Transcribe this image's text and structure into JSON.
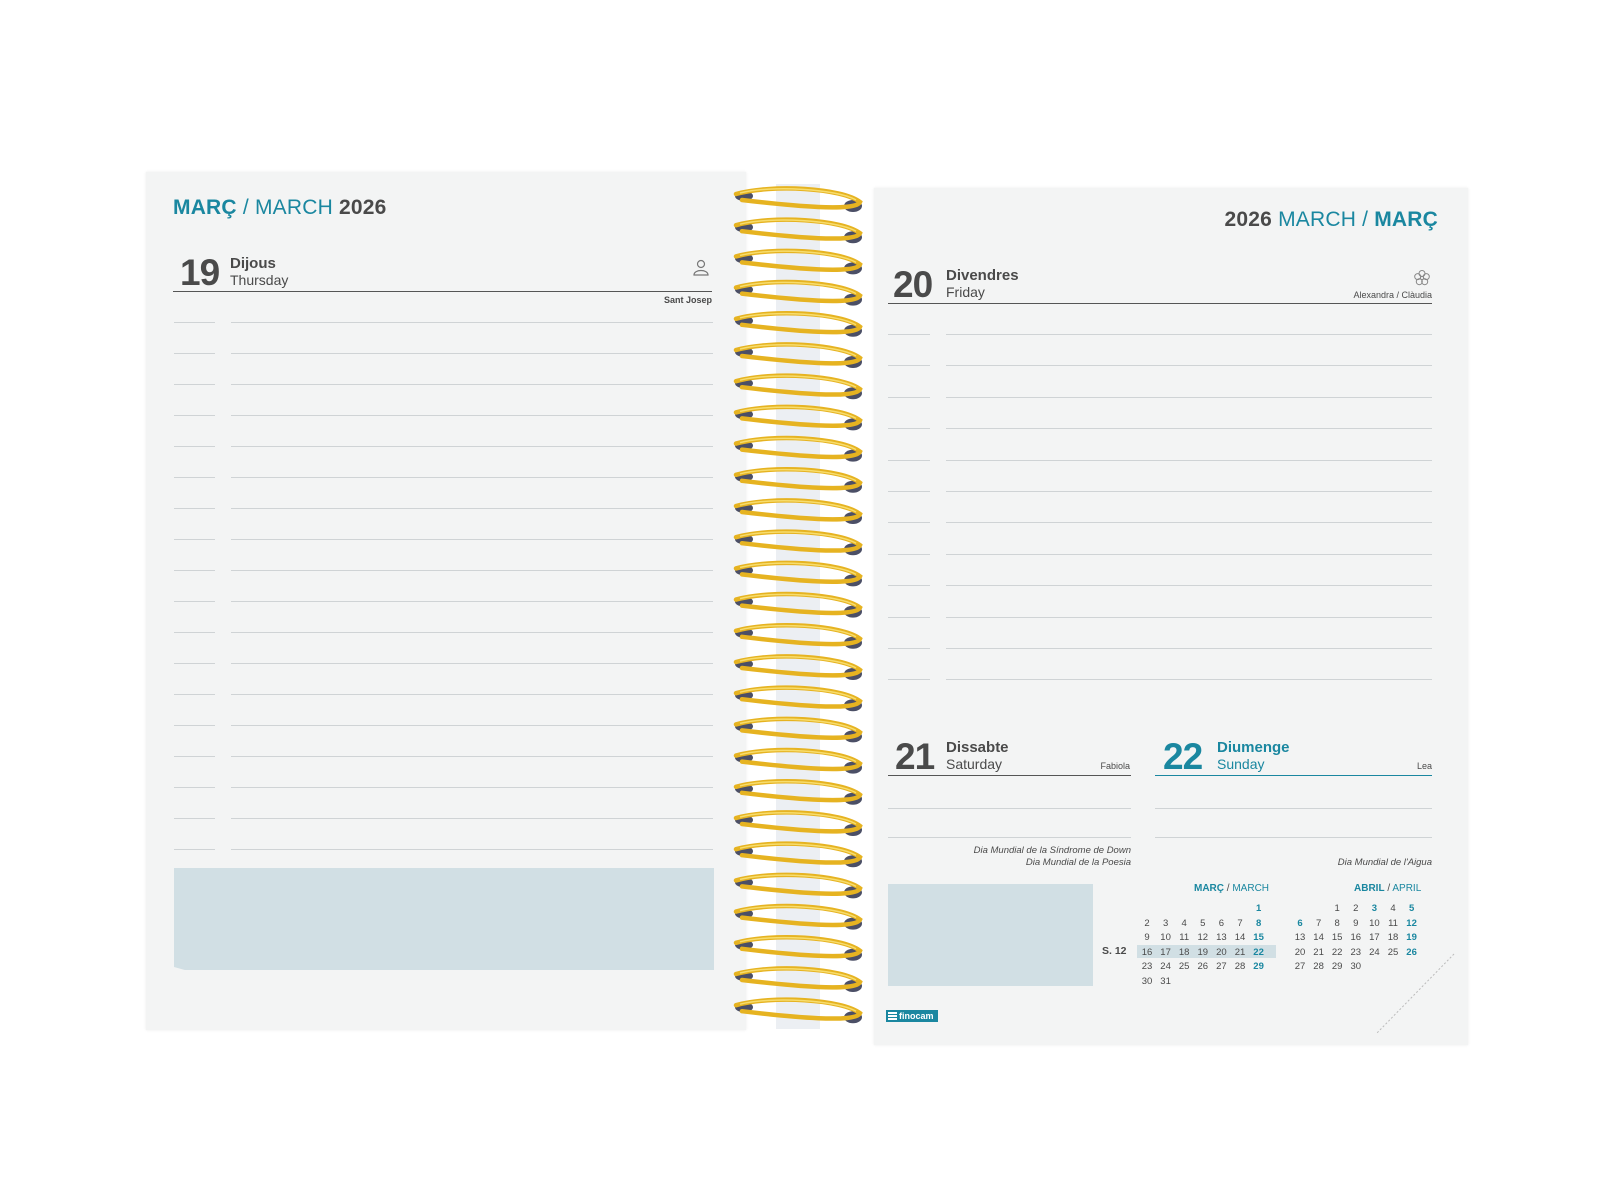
{
  "left_page": {
    "header": {
      "ca": "MARÇ",
      "sep": "/",
      "en": "MARCH",
      "year": "2026"
    },
    "day": {
      "number": "19",
      "name_ca": "Dijous",
      "name_en": "Thursday",
      "saint": "Sant Josep",
      "icon": "person-icon"
    },
    "line_count": 18
  },
  "right_page": {
    "header": {
      "year": "2026",
      "en": "MARCH",
      "sep": "/",
      "ca": "MARÇ"
    },
    "day20": {
      "number": "20",
      "name_ca": "Divendres",
      "name_en": "Friday",
      "saint": "Alexandra / Clàudia",
      "icon": "flower-icon"
    },
    "day21": {
      "number": "21",
      "name_ca": "Dissabte",
      "name_en": "Saturday",
      "saint": "Fabiola",
      "events": [
        "Dia Mundial de la Síndrome de Down",
        "Dia Mundial de la Poesia"
      ]
    },
    "day22": {
      "number": "22",
      "name_ca": "Diumenge",
      "name_en": "Sunday",
      "saint": "Lea",
      "events": [
        "Dia Mundial de l'Aigua"
      ]
    },
    "week_label": "S. 12",
    "brand": "finocam"
  },
  "mini_calendars": [
    {
      "title_ca": "MARÇ",
      "title_sep": "/",
      "title_en": "MARCH",
      "rows": [
        [
          "",
          "",
          "",
          "",
          "",
          "",
          "1"
        ],
        [
          "2",
          "3",
          "4",
          "5",
          "6",
          "7",
          "8"
        ],
        [
          "9",
          "10",
          "11",
          "12",
          "13",
          "14",
          "15"
        ],
        [
          "16",
          "17",
          "18",
          "19",
          "20",
          "21",
          "22"
        ],
        [
          "23",
          "24",
          "25",
          "26",
          "27",
          "28",
          "29"
        ],
        [
          "30",
          "31",
          "",
          "",
          "",
          "",
          ""
        ]
      ],
      "highlight_row": 3
    },
    {
      "title_ca": "ABRIL",
      "title_sep": "/",
      "title_en": "APRIL",
      "rows": [
        [
          "",
          "",
          "1",
          "2",
          "3",
          "4",
          "5"
        ],
        [
          "6",
          "7",
          "8",
          "9",
          "10",
          "11",
          "12"
        ],
        [
          "13",
          "14",
          "15",
          "16",
          "17",
          "18",
          "19"
        ],
        [
          "20",
          "21",
          "22",
          "23",
          "24",
          "25",
          "26"
        ],
        [
          "27",
          "28",
          "29",
          "30",
          "",
          "",
          ""
        ]
      ],
      "sunday_col_bold": 6,
      "bold_extra": [
        "3",
        "6"
      ]
    }
  ],
  "colors": {
    "accent": "#1a87a0",
    "box": "#d1dfe4",
    "spiral": "#e6b321",
    "page": "#f3f4f4"
  }
}
